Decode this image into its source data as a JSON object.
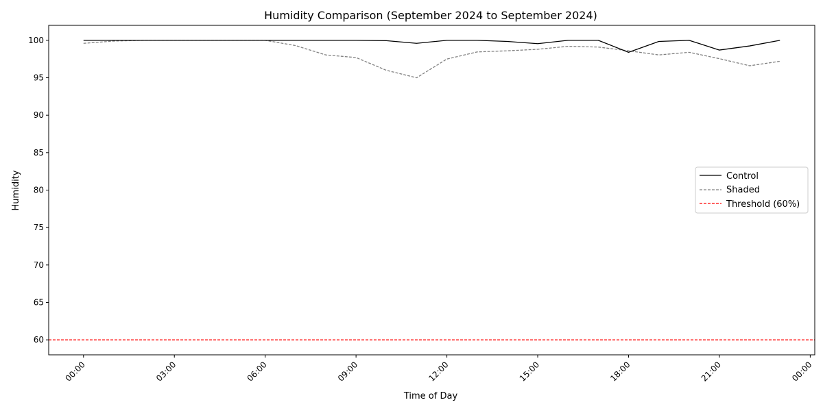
{
  "chart_data": {
    "type": "line",
    "title": "Humidity Comparison (September 2024 to September 2024)",
    "xlabel": "Time of Day",
    "ylabel": "Humidity",
    "x_unit": "hour of day",
    "x_tick_labels": [
      "00:00",
      "03:00",
      "06:00",
      "09:00",
      "12:00",
      "15:00",
      "18:00",
      "21:00",
      "00:00"
    ],
    "x_ticks": [
      0,
      3,
      6,
      9,
      12,
      15,
      18,
      21,
      24
    ],
    "xlim": [
      -1.15,
      24.15
    ],
    "ylim": [
      58,
      102
    ],
    "y_ticks": [
      60,
      65,
      70,
      75,
      80,
      85,
      90,
      95,
      100
    ],
    "grid": false,
    "legend_position": "center-right",
    "x": [
      0,
      1,
      2,
      3,
      4,
      5,
      6,
      7,
      8,
      9,
      10,
      11,
      12,
      13,
      14,
      15,
      16,
      17,
      18,
      19,
      20,
      21,
      22,
      23
    ],
    "series": [
      {
        "name": "Control",
        "color": "#000000",
        "style": "solid",
        "values": [
          100.0,
          100.0,
          100.0,
          100.0,
          100.0,
          100.0,
          100.0,
          100.0,
          100.0,
          100.0,
          99.95,
          99.6,
          100.0,
          100.0,
          99.85,
          99.55,
          100.0,
          100.0,
          98.4,
          99.85,
          100.0,
          98.7,
          99.25,
          100.0
        ]
      },
      {
        "name": "Shaded",
        "color": "#808080",
        "style": "dashed",
        "values": [
          99.6,
          99.9,
          100.0,
          100.0,
          100.0,
          100.0,
          100.0,
          99.3,
          98.05,
          97.7,
          96.0,
          95.0,
          97.5,
          98.45,
          98.6,
          98.8,
          99.2,
          99.1,
          98.6,
          98.05,
          98.4,
          97.55,
          96.6,
          97.2
        ]
      }
    ],
    "threshold": {
      "name": "Threshold (60%)",
      "value": 60,
      "color": "#ff0000",
      "style": "dashed"
    }
  }
}
